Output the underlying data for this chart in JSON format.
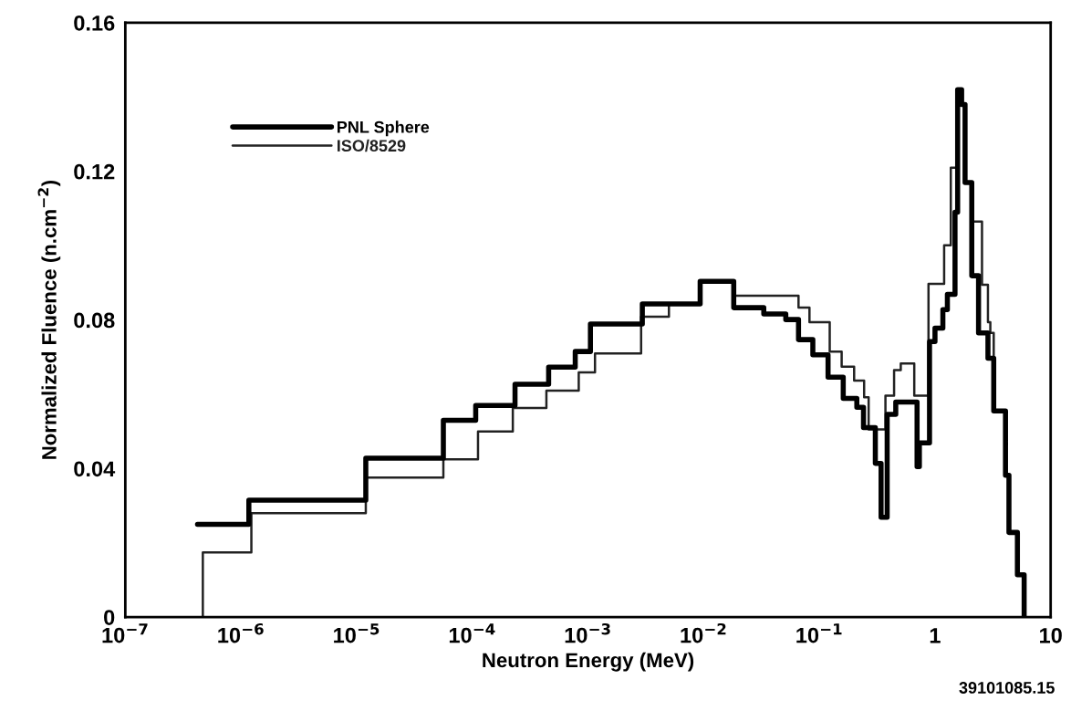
{
  "chart_data": {
    "type": "step",
    "xlabel": "Neutron Energy (MeV)",
    "ylabel": "Normalized Fluence (n.cm$^{−2}$)",
    "log": "x",
    "xlim": [
      1e-07,
      10
    ],
    "xticks": [
      {
        "value": 1e-07,
        "label": "10$^{−7}$"
      },
      {
        "value": 1e-06,
        "label": "10$^{−6}$"
      },
      {
        "value": 1e-05,
        "label": "10$^{−5}$"
      },
      {
        "value": 0.0001,
        "label": "10$^{−4}$"
      },
      {
        "value": 0.001,
        "label": "10$^{−3}$"
      },
      {
        "value": 0.01,
        "label": "10$^{−2}$"
      },
      {
        "value": 0.1,
        "label": "10$^{−1}$"
      },
      1,
      10
    ],
    "ylim": [
      0,
      0.16
    ],
    "yticks": [
      0,
      0.04,
      0.08,
      0.12,
      0.16
    ],
    "grid": false,
    "legend": "top left",
    "annotations": [
      "39101085.15"
    ],
    "series": [
      {
        "name": "PNL Sphere",
        "color": "#000000",
        "x": [
          4.21e-07,
          1.17e-06,
          1.2e-05,
          5.62e-05,
          0.000107,
          0.000234,
          0.000457,
          0.000776,
          0.00105,
          0.00295,
          0.00933,
          0.0182,
          0.0331,
          0.0513,
          0.0661,
          0.0879,
          0.119,
          0.161,
          0.211,
          0.241,
          0.305,
          0.342,
          0.386,
          0.458,
          0.7,
          0.733,
          0.897,
          1.0,
          1.17,
          1.28,
          1.49,
          1.57,
          1.7,
          1.82,
          2.08,
          2.38,
          2.87,
          3.22,
          4.07,
          4.36,
          5.16,
          5.9
        ],
        "values": [
          0.025,
          0.0315,
          0.0428,
          0.053,
          0.057,
          0.0627,
          0.0673,
          0.0715,
          0.0789,
          0.0843,
          0.0904,
          0.0833,
          0.0816,
          0.0801,
          0.0747,
          0.0706,
          0.0646,
          0.0589,
          0.0565,
          0.051,
          0.0414,
          0.0269,
          0.0546,
          0.0579,
          0.0405,
          0.0469,
          0.0742,
          0.0778,
          0.0828,
          0.0869,
          0.109,
          0.142,
          0.138,
          0.117,
          0.0919,
          0.0765,
          0.0697,
          0.0555,
          0.0382,
          0.0228,
          0.0114,
          0
        ]
      },
      {
        "name": "ISO/8529",
        "color": "#222222",
        "x": [
          4.68e-07,
          4.68e-07,
          1.23e-06,
          1.2e-05,
          5.62e-05,
          0.000112,
          0.000224,
          0.000437,
          0.000832,
          0.00115,
          0.00288,
          0.00501,
          0.00933,
          0.0182,
          0.0661,
          0.0822,
          0.123,
          0.156,
          0.2,
          0.244,
          0.267,
          0.373,
          0.443,
          0.506,
          0.662,
          0.879,
          1.2,
          1.37,
          1.53,
          1.7,
          1.82,
          2.08,
          2.55,
          2.87,
          3.01,
          3.22,
          4.07,
          4.36,
          5.16,
          5.9
        ],
        "values": [
          0,
          0.0174,
          0.028,
          0.0376,
          0.0425,
          0.05,
          0.0563,
          0.061,
          0.0659,
          0.071,
          0.0809,
          0.0843,
          0.0904,
          0.0865,
          0.0833,
          0.0794,
          0.0715,
          0.0674,
          0.0637,
          0.0592,
          0.0505,
          0.0596,
          0.0665,
          0.0683,
          0.0596,
          0.0897,
          0.1001,
          0.121,
          0.14,
          0.138,
          0.117,
          0.1065,
          0.0895,
          0.0794,
          0.0765,
          0.0555,
          0.0382,
          0.0228,
          0.0114,
          0
        ]
      }
    ]
  }
}
